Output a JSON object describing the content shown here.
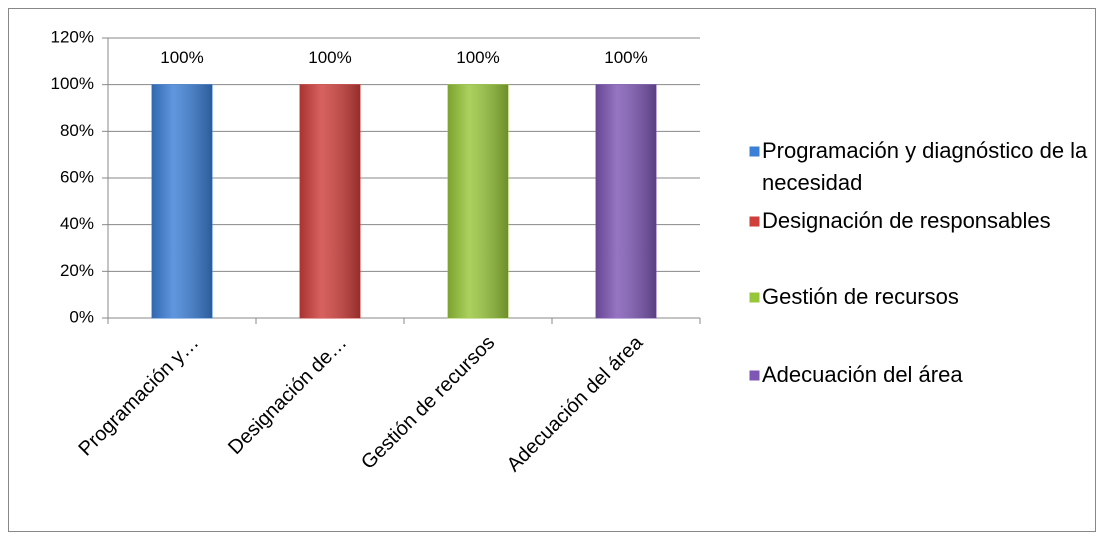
{
  "chart_data": {
    "type": "bar",
    "categories": [
      "Programación y…",
      "Designación de…",
      "Gestión de recursos",
      "Adecuación del área"
    ],
    "values": [
      100,
      100,
      100,
      100
    ],
    "value_labels": [
      "100%",
      "100%",
      "100%",
      "100%"
    ],
    "colors": [
      "#3c7fd6",
      "#cf3f3c",
      "#98c63b",
      "#7e57b5"
    ],
    "legend": [
      "Programación y diagnóstico de la necesidad",
      "Designación de responsables",
      "Gestión de recursos",
      "Adecuación del área"
    ],
    "ylim": [
      0,
      120
    ],
    "yticks": [
      {
        "value": 0,
        "label": "0%"
      },
      {
        "value": 20,
        "label": "20%"
      },
      {
        "value": 40,
        "label": "40%"
      },
      {
        "value": 60,
        "label": "60%"
      },
      {
        "value": 80,
        "label": "80%"
      },
      {
        "value": 100,
        "label": "100%"
      },
      {
        "value": 120,
        "label": "120%"
      }
    ],
    "grid": true
  }
}
